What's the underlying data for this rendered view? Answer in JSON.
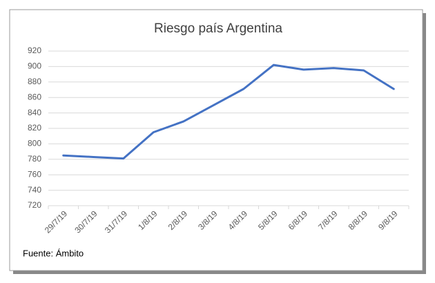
{
  "chart_data": {
    "type": "line",
    "title": "Riesgo país Argentina",
    "categories": [
      "29/7/19",
      "30/7/19",
      "31/7/19",
      "1/8/19",
      "2/8/19",
      "3/8/19",
      "4/8/19",
      "5/8/19",
      "6/8/19",
      "7/8/19",
      "8/8/19",
      "9/8/19"
    ],
    "values": [
      785,
      783,
      781,
      815,
      829,
      850,
      871,
      902,
      896,
      898,
      895,
      871
    ],
    "color": "#4472c4",
    "ylim": [
      720,
      920
    ],
    "yticks": [
      720,
      740,
      760,
      780,
      800,
      820,
      840,
      860,
      880,
      900,
      920
    ],
    "grid": true,
    "source": "Fuente: Ámbito"
  }
}
